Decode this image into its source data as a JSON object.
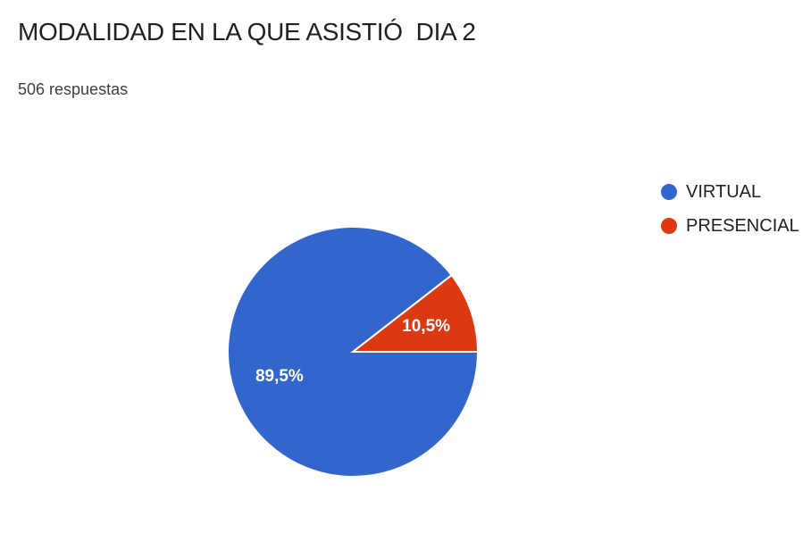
{
  "title": "MODALIDAD EN LA QUE ASISTIÓ  DIA 2",
  "subtitle": "506 respuestas",
  "chart_data": {
    "type": "pie",
    "title": "MODALIDAD EN LA QUE ASISTIÓ  DIA 2",
    "subtitle": "506 respuestas",
    "legend_position": "right",
    "slices": [
      {
        "label": "VIRTUAL",
        "value": 89.5,
        "display": "89,5%",
        "color": "#3366cc"
      },
      {
        "label": "PRESENCIAL",
        "value": 10.5,
        "display": "10,5%",
        "color": "#dc3912"
      }
    ]
  }
}
